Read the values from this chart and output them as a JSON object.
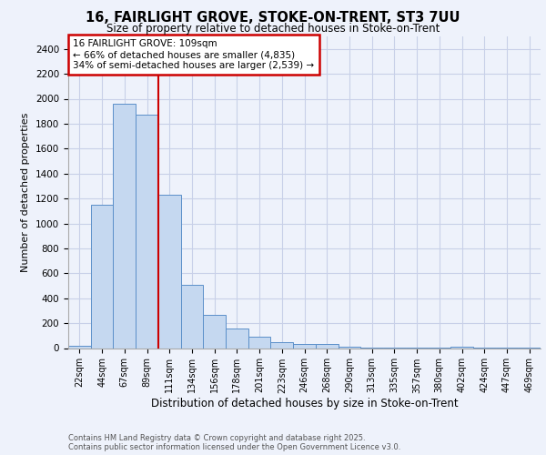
{
  "title_line1": "16, FAIRLIGHT GROVE, STOKE-ON-TRENT, ST3 7UU",
  "title_line2": "Size of property relative to detached houses in Stoke-on-Trent",
  "xlabel": "Distribution of detached houses by size in Stoke-on-Trent",
  "ylabel": "Number of detached properties",
  "categories": [
    "22sqm",
    "44sqm",
    "67sqm",
    "89sqm",
    "111sqm",
    "134sqm",
    "156sqm",
    "178sqm",
    "201sqm",
    "223sqm",
    "246sqm",
    "268sqm",
    "290sqm",
    "313sqm",
    "335sqm",
    "357sqm",
    "380sqm",
    "402sqm",
    "424sqm",
    "447sqm",
    "469sqm"
  ],
  "values": [
    20,
    1150,
    1960,
    1870,
    1230,
    510,
    270,
    155,
    90,
    45,
    35,
    30,
    12,
    6,
    4,
    3,
    2,
    12,
    2,
    1,
    1
  ],
  "bar_color": "#c5d8f0",
  "bar_edge_color": "#5b8fc9",
  "red_line_x": 3.5,
  "annotation_text": "16 FAIRLIGHT GROVE: 109sqm\n← 66% of detached houses are smaller (4,835)\n34% of semi-detached houses are larger (2,539) →",
  "annotation_box_color": "#ffffff",
  "annotation_box_edge": "#cc0000",
  "footer_line1": "Contains HM Land Registry data © Crown copyright and database right 2025.",
  "footer_line2": "Contains public sector information licensed under the Open Government Licence v3.0.",
  "background_color": "#eef2fb",
  "grid_color": "#c8d0e8",
  "ylim": [
    0,
    2500
  ],
  "yticks": [
    0,
    200,
    400,
    600,
    800,
    1000,
    1200,
    1400,
    1600,
    1800,
    2000,
    2200,
    2400
  ]
}
